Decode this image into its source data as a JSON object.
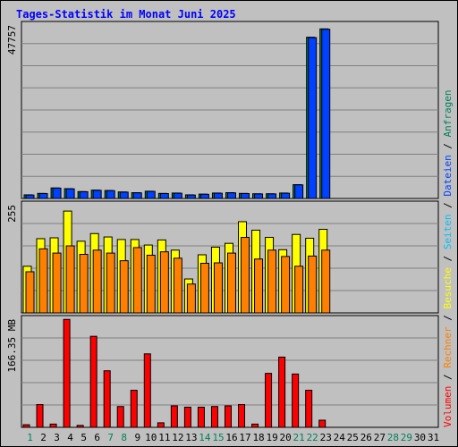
{
  "chart_data": {
    "type": "bar",
    "title": "Tages-Statistik im Monat Juni 2025",
    "categories": [
      "1",
      "2",
      "3",
      "4",
      "5",
      "6",
      "7",
      "8",
      "9",
      "10",
      "11",
      "12",
      "13",
      "14",
      "15",
      "16",
      "17",
      "18",
      "19",
      "20",
      "21",
      "22",
      "23",
      "24",
      "25",
      "26",
      "27",
      "28",
      "29",
      "30",
      "31"
    ],
    "weekend_days": [
      1,
      7,
      8,
      14,
      15,
      21,
      22,
      28,
      29
    ],
    "panels": [
      {
        "id": "requests-files",
        "ylabel": "47757",
        "ymax": 47757,
        "series": [
          {
            "name": "Anfragen",
            "color": "#00805c",
            "values": [
              1000,
              1400,
              2900,
              2700,
              1900,
              2300,
              2200,
              1800,
              1600,
              2000,
              1400,
              1500,
              1000,
              1200,
              1500,
              1600,
              1400,
              1300,
              1300,
              1500,
              3800,
              44400,
              46700,
              0,
              0,
              0,
              0,
              0,
              0,
              0,
              0
            ]
          },
          {
            "name": "Dateien",
            "color": "#0040ff",
            "values": [
              950,
              1350,
              2850,
              2650,
              1850,
              2250,
              2150,
              1750,
              1550,
              1950,
              1350,
              1450,
              950,
              1150,
              1450,
              1550,
              1350,
              1250,
              1250,
              1450,
              3750,
              44300,
              46600,
              0,
              0,
              0,
              0,
              0,
              0,
              0,
              0
            ]
          }
        ]
      },
      {
        "id": "pages-visits",
        "ylabel": "255",
        "ymax": 255,
        "series": [
          {
            "name": "Seiten",
            "color": "#00c0ff",
            "values": [
              0,
              0,
              0,
              0,
              0,
              0,
              0,
              0,
              0,
              0,
              0,
              0,
              0,
              0,
              0,
              0,
              0,
              0,
              0,
              0,
              0,
              0,
              0,
              0,
              0,
              0,
              0,
              0,
              0,
              0,
              0
            ]
          },
          {
            "name": "Besuche",
            "color": "#ffff00",
            "values": [
              110,
              175,
              177,
              240,
              169,
              187,
              179,
              173,
              173,
              160,
              172,
              148,
              80,
              137,
              155,
              164,
              215,
              195,
              178,
              149,
              185,
              176,
              197,
              0,
              0,
              0,
              0,
              0,
              0,
              0,
              0
            ]
          },
          {
            "name": "Rechner",
            "color": "#ff8000",
            "values": [
              97,
              151,
              141,
              158,
              138,
              148,
              141,
              123,
              154,
              136,
              144,
              129,
              68,
              117,
              118,
              141,
              178,
              127,
              148,
              133,
              110,
              134,
              148,
              0,
              0,
              0,
              0,
              0,
              0,
              0,
              0
            ]
          }
        ]
      },
      {
        "id": "volume",
        "ylabel": "166.35 MB",
        "ymax": 166.35,
        "series": [
          {
            "name": "Volumen",
            "color": "#ff0000",
            "values": [
              4,
              35,
              5,
              166,
              3,
              140,
              87,
              32,
              57,
              113,
              7,
              33,
              31,
              31,
              32,
              33,
              35,
              5,
              83,
              108,
              82,
              57,
              11,
              0,
              0,
              0,
              0,
              0,
              0,
              0,
              0
            ]
          }
        ]
      }
    ],
    "legend_separator": " / ",
    "legend_order": [
      "Volumen",
      "Rechner",
      "Besuche",
      "Seiten",
      "Dateien",
      "Anfragen"
    ]
  }
}
